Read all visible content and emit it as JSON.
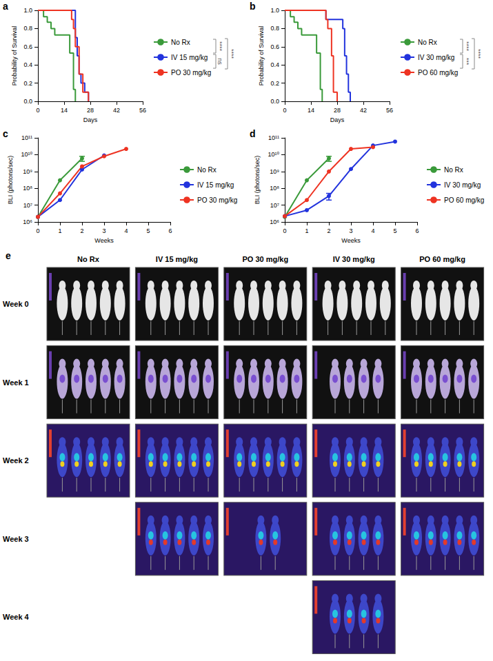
{
  "chart_data": [
    {
      "panel": "a",
      "type": "step",
      "xlabel": "Days",
      "ylabel": "Probability of Survival",
      "xlim": [
        0,
        56
      ],
      "xticks": [
        0,
        14,
        28,
        42,
        56
      ],
      "ylim": [
        0,
        1
      ],
      "yticks": [
        {
          "value": 0,
          "label": "0.0"
        },
        0.2,
        0.4,
        0.6,
        0.8,
        {
          "value": 1,
          "label": "1.0"
        }
      ],
      "grid": false,
      "legend": "right",
      "series": [
        {
          "name": "No Rx",
          "color": "#3a9a3a",
          "x": [
            0,
            3,
            5,
            7,
            9,
            17,
            19,
            20
          ],
          "values": [
            1,
            0.93,
            0.87,
            0.8,
            0.73,
            0.53,
            0.13,
            0
          ]
        },
        {
          "name": "IV 15 mg/kg",
          "color": "#2233dd",
          "x": [
            0,
            20,
            21,
            22,
            23,
            25,
            27
          ],
          "values": [
            1,
            0.7,
            0.5,
            0.3,
            0.2,
            0.1,
            0
          ]
        },
        {
          "name": "PO 30 mg/kg",
          "color": "#ee3322",
          "x": [
            0,
            18,
            19,
            20,
            22,
            24,
            27
          ],
          "values": [
            1,
            0.9,
            0.8,
            0.6,
            0.3,
            0.1,
            0
          ]
        }
      ],
      "annotations": [
        {
          "text": "****",
          "from": "No Rx",
          "to": "IV 15 mg/kg"
        },
        {
          "text": "ns",
          "from": "IV 15 mg/kg",
          "to": "PO 30 mg/kg"
        },
        {
          "text": "****",
          "from": "No Rx",
          "to": "PO 30 mg/kg"
        }
      ]
    },
    {
      "panel": "b",
      "type": "step",
      "xlabel": "Days",
      "ylabel": "Probability of Survival",
      "xlim": [
        0,
        56
      ],
      "xticks": [
        0,
        14,
        28,
        42,
        56
      ],
      "ylim": [
        0,
        1
      ],
      "yticks": [
        {
          "value": 0,
          "label": "0.0"
        },
        0.2,
        0.4,
        0.6,
        0.8,
        {
          "value": 1,
          "label": "1.0"
        }
      ],
      "grid": false,
      "legend": "right",
      "series": [
        {
          "name": "No Rx",
          "color": "#3a9a3a",
          "x": [
            0,
            3,
            5,
            7,
            9,
            17,
            19,
            20
          ],
          "values": [
            1,
            0.93,
            0.87,
            0.8,
            0.73,
            0.53,
            0.13,
            0
          ]
        },
        {
          "name": "IV 30 mg/kg",
          "color": "#2233dd",
          "x": [
            0,
            22,
            31,
            32,
            33,
            34,
            35
          ],
          "values": [
            1,
            0.9,
            0.8,
            0.5,
            0.3,
            0.1,
            0
          ]
        },
        {
          "name": "PO 60 mg/kg",
          "color": "#ee3322",
          "x": [
            0,
            22,
            23,
            25,
            26,
            28
          ],
          "values": [
            1,
            0.9,
            0.8,
            0.5,
            0.1,
            0
          ]
        }
      ],
      "annotations": [
        {
          "text": "****",
          "from": "No Rx",
          "to": "IV 30 mg/kg"
        },
        {
          "text": "***",
          "from": "IV 30 mg/kg",
          "to": "PO 60 mg/kg"
        },
        {
          "text": "****",
          "from": "No Rx",
          "to": "PO 60 mg/kg"
        }
      ]
    },
    {
      "panel": "c",
      "type": "line",
      "xlabel": "Weeks",
      "ylabel": "BLI (photons/sec)",
      "log": "y",
      "xlim": [
        0,
        6
      ],
      "xticks": [
        0,
        1,
        2,
        3,
        4,
        5,
        6
      ],
      "ylim": [
        1000000.0,
        100000000000.0
      ],
      "yticks": [
        {
          "value": 1000000.0,
          "label": "10⁶"
        },
        {
          "value": 10000000.0,
          "label": "10⁷"
        },
        {
          "value": 100000000.0,
          "label": "10⁸"
        },
        {
          "value": 1000000000.0,
          "label": "10⁹"
        },
        {
          "value": 10000000000.0,
          "label": "10¹⁰"
        },
        {
          "value": 100000000000.0,
          "label": "10¹¹"
        }
      ],
      "grid": false,
      "legend": "right",
      "marker": "circle",
      "series": [
        {
          "name": "No Rx",
          "color": "#3a9a3a",
          "x": [
            0,
            1,
            2
          ],
          "values": [
            2000000.0,
            300000000.0,
            6000000000.0
          ],
          "errors": [
            null,
            null,
            2000000000.0
          ]
        },
        {
          "name": "IV 15 mg/kg",
          "color": "#2233dd",
          "x": [
            0,
            1,
            2,
            3
          ],
          "values": [
            2000000.0,
            20000000.0,
            1300000000.0,
            9000000000.0
          ]
        },
        {
          "name": "PO 30 mg/kg",
          "color": "#ee3322",
          "x": [
            0,
            1,
            2,
            3,
            4
          ],
          "values": [
            2000000.0,
            50000000.0,
            2000000000.0,
            8000000000.0,
            22000000000.0
          ]
        }
      ]
    },
    {
      "panel": "d",
      "type": "line",
      "xlabel": "Weeks",
      "ylabel": "BLI (photons/sec)",
      "log": "y",
      "xlim": [
        0,
        6
      ],
      "xticks": [
        0,
        1,
        2,
        3,
        4,
        5,
        6
      ],
      "ylim": [
        1000000.0,
        100000000000.0
      ],
      "yticks": [
        {
          "value": 1000000.0,
          "label": "10⁶"
        },
        {
          "value": 10000000.0,
          "label": "10⁷"
        },
        {
          "value": 100000000.0,
          "label": "10⁸"
        },
        {
          "value": 1000000000.0,
          "label": "10⁹"
        },
        {
          "value": 10000000000.0,
          "label": "10¹⁰"
        },
        {
          "value": 100000000000.0,
          "label": "10¹¹"
        }
      ],
      "grid": false,
      "legend": "right",
      "marker": "circle",
      "series": [
        {
          "name": "No Rx",
          "color": "#3a9a3a",
          "x": [
            0,
            1,
            2
          ],
          "values": [
            2000000.0,
            300000000.0,
            6000000000.0
          ],
          "errors": [
            null,
            null,
            2000000000.0
          ]
        },
        {
          "name": "IV 30 mg/kg",
          "color": "#2233dd",
          "x": [
            0,
            1,
            2,
            3,
            4,
            5
          ],
          "values": [
            2200000.0,
            5000000.0,
            35000000.0,
            1400000000.0,
            35000000000.0,
            60000000000.0
          ],
          "errors": [
            null,
            null,
            15000000.0,
            null,
            null,
            null
          ]
        },
        {
          "name": "PO 60 mg/kg",
          "color": "#ee3322",
          "x": [
            0,
            1,
            2,
            3,
            4
          ],
          "values": [
            2200000.0,
            20000000.0,
            1000000000.0,
            22000000000.0,
            28000000000.0
          ]
        }
      ]
    }
  ],
  "panel_e": {
    "panel": "e",
    "columns": [
      "No Rx",
      "IV 15 mg/kg",
      "PO 30 mg/kg",
      "IV 30 mg/kg",
      "PO 60 mg/kg"
    ],
    "rows": [
      {
        "label": "Week 0",
        "cells": [
          {
            "column": "No Rx",
            "mice": 5
          },
          {
            "column": "IV 15 mg/kg",
            "mice": 5
          },
          {
            "column": "PO 30 mg/kg",
            "mice": 5
          },
          {
            "column": "IV 30 mg/kg",
            "mice": 5
          },
          {
            "column": "PO 60 mg/kg",
            "mice": 5
          }
        ]
      },
      {
        "label": "Week 1",
        "cells": [
          {
            "column": "No Rx",
            "mice": 5
          },
          {
            "column": "IV 15 mg/kg",
            "mice": 5
          },
          {
            "column": "PO 30 mg/kg",
            "mice": 5
          },
          {
            "column": "IV 30 mg/kg",
            "mice": 4
          },
          {
            "column": "PO 60 mg/kg",
            "mice": 5
          }
        ]
      },
      {
        "label": "Week 2",
        "cells": [
          {
            "column": "No Rx",
            "mice": 5
          },
          {
            "column": "IV 15 mg/kg",
            "mice": 5
          },
          {
            "column": "PO 30 mg/kg",
            "mice": 5
          },
          {
            "column": "IV 30 mg/kg",
            "mice": 4
          },
          {
            "column": "PO 60 mg/kg",
            "mice": 5
          }
        ]
      },
      {
        "label": "Week 3",
        "cells": [
          {
            "column": "IV 15 mg/kg",
            "mice": 5
          },
          {
            "column": "PO 30 mg/kg",
            "mice": 2
          },
          {
            "column": "IV 30 mg/kg",
            "mice": 4
          },
          {
            "column": "PO 60 mg/kg",
            "mice": 5
          }
        ]
      },
      {
        "label": "Week 4",
        "cells": [
          {
            "column": "IV 30 mg/kg",
            "mice": 4
          }
        ]
      }
    ]
  }
}
